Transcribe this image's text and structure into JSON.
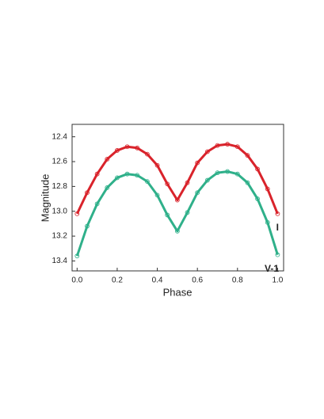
{
  "chart_data": {
    "type": "line",
    "x_label": "Phase",
    "y_label": "Magnitude",
    "x": [
      0,
      0.05,
      0.1,
      0.15,
      0.2,
      0.25,
      0.3,
      0.35,
      0.4,
      0.45,
      0.5,
      0.55,
      0.6,
      0.65,
      0.7,
      0.75,
      0.8,
      0.85,
      0.9,
      0.95,
      1
    ],
    "series": [
      {
        "name": "I",
        "color": "#d9232b",
        "values": [
          13.02,
          12.85,
          12.7,
          12.58,
          12.51,
          12.48,
          12.49,
          12.54,
          12.63,
          12.78,
          12.91,
          12.77,
          12.61,
          12.52,
          12.47,
          12.46,
          12.48,
          12.55,
          12.66,
          12.82,
          13.02
        ]
      },
      {
        "name": "V-1",
        "color": "#2fb08a",
        "values": [
          13.36,
          13.12,
          12.94,
          12.81,
          12.73,
          12.7,
          12.71,
          12.76,
          12.87,
          13.03,
          13.16,
          13.01,
          12.85,
          12.75,
          12.69,
          12.68,
          12.7,
          12.77,
          12.9,
          13.09,
          13.35
        ]
      }
    ],
    "xlim": [
      -0.025,
      1.03
    ],
    "ylim": [
      12.3,
      13.48
    ],
    "y_inverted": true,
    "xticks": [
      {
        "value": 0,
        "label": "0.0"
      },
      0.2,
      0.4,
      0.6,
      0.8,
      {
        "value": 1,
        "label": "1.0"
      }
    ],
    "yticks": [
      12.4,
      12.6,
      12.8,
      {
        "value": 13,
        "label": "13.0"
      },
      13.2,
      13.4
    ],
    "grid": false
  }
}
